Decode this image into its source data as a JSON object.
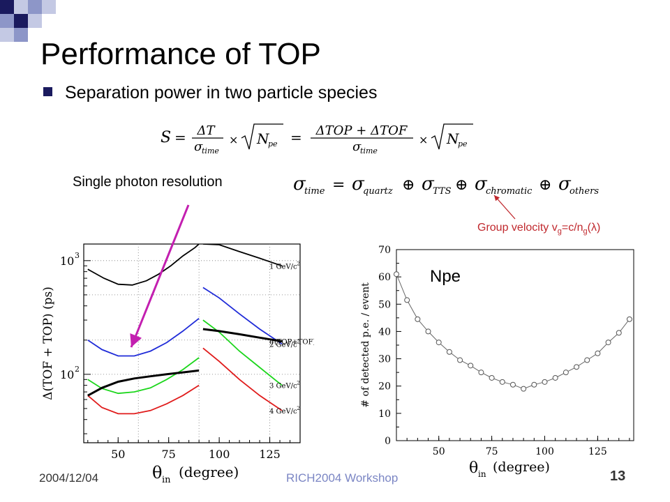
{
  "slide": {
    "title": "Performance of TOP",
    "bullet": "Separation power in two particle species",
    "formula_s": {
      "lhs": "S",
      "t1_num": "ΔT",
      "t1_den_base": "σ",
      "t1_den_sub": "time",
      "sqrt_base": "N",
      "sqrt_sub": "pe",
      "t2_num": "ΔTOP + ΔTOF",
      "t2_den_base": "σ",
      "t2_den_sub": "time",
      "times": "×",
      "equals": "="
    },
    "single_photon_label": "Single photon resolution",
    "sigma_formula": {
      "base": "σ",
      "lhs_sub": "time",
      "terms": [
        "quartz",
        "TTS",
        "chromatic",
        "others"
      ],
      "equals": "=",
      "oplus": "⊕"
    },
    "group_velocity": {
      "prefix": "Group velocity v",
      "sub1": "g",
      "mid": "=c/n",
      "sub2": "g",
      "suffix": "(λ)"
    },
    "footer": {
      "date": "2004/12/04",
      "event": "RICH2004 Workshop",
      "page": "13"
    },
    "colors": {
      "bullet": "#1a1a5e",
      "deco1": "#1a1a5e",
      "deco2": "#8d96c8",
      "deco3": "#c4c9e4",
      "arrow_magenta": "#c31fb0",
      "arrow_red": "#c0282d"
    }
  },
  "chart_data": [
    {
      "type": "line",
      "xlabel_base": "θ",
      "xlabel_sub": "in",
      "xlabel_unit": "(degree)",
      "ylabel": "Δ(TOF + TOP)  (ps)",
      "x_ticks": [
        "50",
        "75",
        "100",
        "125"
      ],
      "y_ticks": [
        {
          "base": "10",
          "exp": "2"
        },
        {
          "base": "10",
          "exp": "3"
        }
      ],
      "xlim": [
        33,
        140
      ],
      "ylim": [
        25,
        1400
      ],
      "log_y": true,
      "grid": true,
      "series": [
        {
          "name": "1 GeV/c²",
          "color": "#000000",
          "x": [
            35,
            43,
            50,
            57,
            64,
            70,
            76,
            82,
            88,
            90,
            92,
            100,
            110,
            120,
            131
          ],
          "y": [
            840,
            700,
            620,
            610,
            665,
            760,
            900,
            1100,
            1300,
            1400,
            1400,
            1380,
            1200,
            1050,
            900
          ]
        },
        {
          "name": "2 GeV/c²",
          "color": "#1f2bd8",
          "x": [
            35,
            42,
            50,
            58,
            66,
            74,
            82,
            90,
            92,
            100,
            110,
            120,
            131
          ],
          "y": [
            200,
            165,
            145,
            145,
            160,
            190,
            240,
            310,
            580,
            470,
            340,
            250,
            185
          ]
        },
        {
          "name": "3 GeV/c²",
          "color": "#1bd61b",
          "x": [
            35,
            42,
            50,
            58,
            66,
            74,
            82,
            90,
            92,
            100,
            110,
            120,
            131
          ],
          "y": [
            90,
            75,
            68,
            70,
            76,
            90,
            110,
            140,
            300,
            235,
            160,
            115,
            80
          ]
        },
        {
          "name": "4 GeV/c²",
          "color": "#e01b1b",
          "x": [
            35,
            42,
            50,
            58,
            66,
            74,
            82,
            90,
            92,
            100,
            110,
            120,
            131
          ],
          "y": [
            65,
            51,
            45,
            45,
            48,
            55,
            65,
            80,
            170,
            130,
            90,
            65,
            48
          ]
        },
        {
          "name": "σ(TOP+TOF)",
          "color": "#000000",
          "width": 3,
          "x": [
            35,
            42,
            50,
            58,
            66,
            74,
            82,
            90,
            92,
            100,
            110,
            120,
            131
          ],
          "y": [
            65,
            76,
            86,
            92,
            96,
            100,
            104,
            108,
            250,
            240,
            225,
            210,
            195
          ]
        }
      ],
      "labels": [
        {
          "text": "1 GeV/c",
          "sup": "2",
          "series": 0
        },
        {
          "text": "σ(TOP+TOF)",
          "sup": "",
          "series": 4
        },
        {
          "text": "2 GeV/c",
          "sup": "2",
          "series": 1
        },
        {
          "text": "3 GeV/c",
          "sup": "2",
          "series": 2
        },
        {
          "text": "4 GeV/c",
          "sup": "2",
          "series": 3
        }
      ]
    },
    {
      "type": "scatter",
      "annotation": "Npe",
      "xlabel_base": "θ",
      "xlabel_sub": "in",
      "xlabel_unit": "(degree)",
      "ylabel": "# of detected p.e. / event",
      "x_ticks": [
        "50",
        "75",
        "100",
        "125"
      ],
      "y_ticks": [
        "0",
        "10",
        "20",
        "30",
        "40",
        "50",
        "60",
        "70"
      ],
      "xlim": [
        30,
        142
      ],
      "ylim": [
        0,
        70
      ],
      "grid": false,
      "series": [
        {
          "name": "",
          "color": "#666666",
          "x": [
            30,
            35,
            40,
            45,
            50,
            55,
            60,
            65,
            70,
            75,
            80,
            85,
            90,
            95,
            100,
            105,
            110,
            115,
            120,
            125,
            130,
            135,
            140
          ],
          "y": [
            61,
            51.5,
            44.5,
            40,
            36,
            32.5,
            29.5,
            27.5,
            25,
            23,
            21.5,
            20.5,
            19,
            20.5,
            21.5,
            23,
            25,
            27,
            29.5,
            32,
            36,
            39.5,
            44.5
          ]
        }
      ]
    }
  ]
}
